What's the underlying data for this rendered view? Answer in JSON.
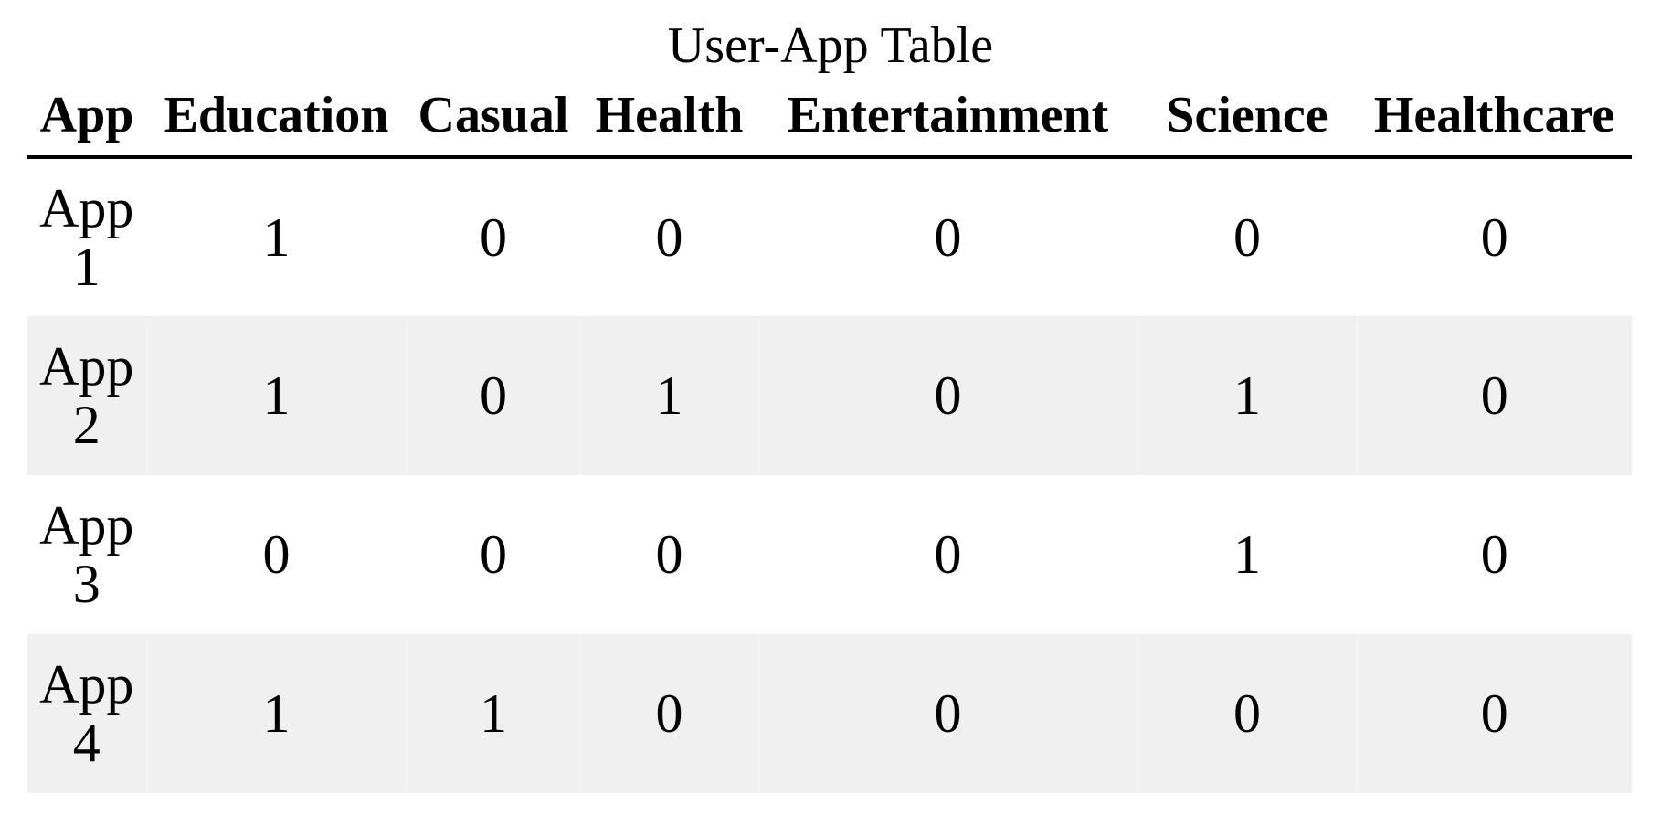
{
  "chart_data": {
    "type": "table",
    "title": "User-App Table",
    "columns": [
      "App",
      "Education",
      "Casual",
      "Health",
      "Entertainment",
      "Science",
      "Healthcare"
    ],
    "rows": [
      {
        "label": "App 1",
        "values": [
          1,
          0,
          0,
          0,
          0,
          0
        ]
      },
      {
        "label": "App 2",
        "values": [
          1,
          0,
          1,
          0,
          1,
          0
        ]
      },
      {
        "label": "App 3",
        "values": [
          0,
          0,
          0,
          0,
          1,
          0
        ]
      },
      {
        "label": "App 4",
        "values": [
          1,
          1,
          0,
          0,
          0,
          0
        ]
      }
    ],
    "header_bold": true,
    "row_striping": "even rows light gray",
    "colors": {
      "stripe": "#f0f0f0",
      "rule": "#000000",
      "text": "#000000"
    }
  }
}
